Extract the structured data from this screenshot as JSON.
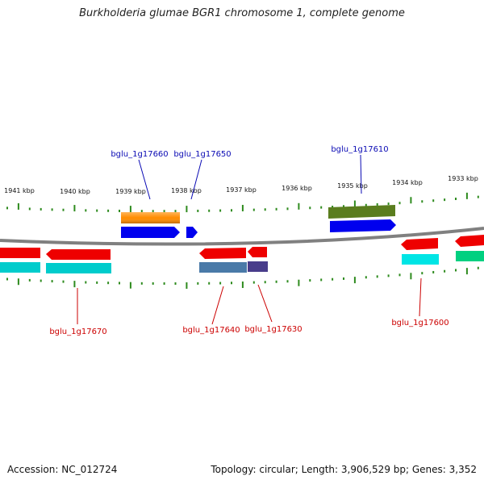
{
  "title": "Burkholderia glumae BGR1 chromosome 1, complete genome",
  "footer": {
    "accession": "Accession: NC_012724",
    "summary": "Topology: circular; Length: 3,906,529 bp; Genes: 3,352"
  },
  "scale_labels": [
    "1941 kbp",
    "1940 kbp",
    "1939 kbp",
    "1938 kbp",
    "1937 kbp",
    "1936 kbp",
    "1935 kbp",
    "1934 kbp",
    "1933 kbp"
  ],
  "gene_labels": {
    "top": [
      {
        "name": "bglu_1g17660",
        "color": "#0a0ab4"
      },
      {
        "name": "bglu_1g17650",
        "color": "#0a0ab4"
      },
      {
        "name": "bglu_1g17610",
        "color": "#0a0ab4"
      }
    ],
    "bottom": [
      {
        "name": "bglu_1g17670",
        "color": "#cc0000"
      },
      {
        "name": "bglu_1g17640",
        "color": "#cc0000"
      },
      {
        "name": "bglu_1g17630",
        "color": "#cc0000"
      },
      {
        "name": "bglu_1g17600",
        "color": "#cc0000"
      }
    ]
  },
  "colors": {
    "backbone": "#808080",
    "tick": "#2e8b1e",
    "cds_forward": "#0000ee",
    "cds_reverse": "#ee0000",
    "gene_orange": "#ff8c00",
    "gene_olive": "#5a7d1e",
    "gene_cyan": "#00cccc",
    "gene_steel": "#4a7aa8",
    "gene_navy": "#483d8b",
    "gene_green": "#00d080"
  }
}
